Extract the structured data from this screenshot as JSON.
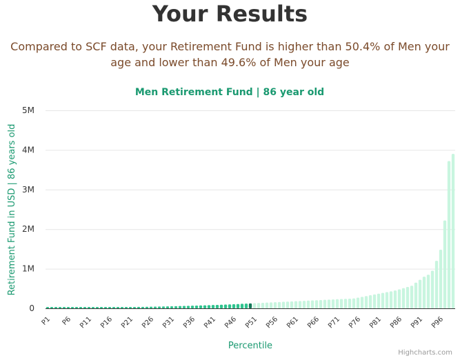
{
  "header": {
    "title": "Your Results",
    "summary": "Compared to SCF data, your Retirement Fund is higher than 50.4% of Men your age and lower than 49.6% of Men your age"
  },
  "credits": "Highcharts.com",
  "colors": {
    "below": "#2fc38e",
    "user": "#157a5a",
    "above": "#c8f5df",
    "accent": "#1a9970"
  },
  "chart_data": {
    "type": "bar",
    "title": "Men Retirement Fund | 86 year old",
    "xlabel": "Percentile",
    "ylabel": "Retirement Fund in USD | 86 years old",
    "ylim": [
      0,
      5000000
    ],
    "yticks": [
      {
        "value": 0,
        "label": "0"
      },
      {
        "value": 1000000,
        "label": "1M"
      },
      {
        "value": 2000000,
        "label": "2M"
      },
      {
        "value": 3000000,
        "label": "3M"
      },
      {
        "value": 4000000,
        "label": "4M"
      },
      {
        "value": 5000000,
        "label": "5M"
      }
    ],
    "xtick_labels": [
      "P1",
      "P6",
      "P11",
      "P16",
      "P21",
      "P26",
      "P31",
      "P36",
      "P41",
      "P46",
      "P51",
      "P56",
      "P61",
      "P66",
      "P71",
      "P76",
      "P81",
      "P86",
      "P91",
      "P96"
    ],
    "user_percentile": 50,
    "grid": true,
    "legend": "none",
    "categories": [
      "P1",
      "P2",
      "P3",
      "P4",
      "P5",
      "P6",
      "P7",
      "P8",
      "P9",
      "P10",
      "P11",
      "P12",
      "P13",
      "P14",
      "P15",
      "P16",
      "P17",
      "P18",
      "P19",
      "P20",
      "P21",
      "P22",
      "P23",
      "P24",
      "P25",
      "P26",
      "P27",
      "P28",
      "P29",
      "P30",
      "P31",
      "P32",
      "P33",
      "P34",
      "P35",
      "P36",
      "P37",
      "P38",
      "P39",
      "P40",
      "P41",
      "P42",
      "P43",
      "P44",
      "P45",
      "P46",
      "P47",
      "P48",
      "P49",
      "P50",
      "P51",
      "P52",
      "P53",
      "P54",
      "P55",
      "P56",
      "P57",
      "P58",
      "P59",
      "P60",
      "P61",
      "P62",
      "P63",
      "P64",
      "P65",
      "P66",
      "P67",
      "P68",
      "P69",
      "P70",
      "P71",
      "P72",
      "P73",
      "P74",
      "P75",
      "P76",
      "P77",
      "P78",
      "P79",
      "P80",
      "P81",
      "P82",
      "P83",
      "P84",
      "P85",
      "P86",
      "P87",
      "P88",
      "P89",
      "P90",
      "P91",
      "P92",
      "P93",
      "P94",
      "P95",
      "P96",
      "P97",
      "P98",
      "P99"
    ],
    "values": [
      0,
      0,
      0,
      0,
      0,
      2000,
      4000,
      6000,
      8000,
      10000,
      12000,
      14000,
      16000,
      18000,
      20000,
      22000,
      24000,
      26000,
      28000,
      30000,
      32000,
      34000,
      36000,
      38000,
      40000,
      42000,
      44000,
      46000,
      48000,
      50000,
      52000,
      55000,
      58000,
      61000,
      64000,
      67000,
      70000,
      73000,
      76000,
      80000,
      84000,
      88000,
      92000,
      96000,
      100000,
      105000,
      110000,
      115000,
      120000,
      125000,
      130000,
      135000,
      140000,
      145000,
      150000,
      155000,
      160000,
      165000,
      170000,
      175000,
      180000,
      185000,
      190000,
      195000,
      200000,
      205000,
      210000,
      215000,
      220000,
      225000,
      230000,
      235000,
      240000,
      245000,
      250000,
      270000,
      290000,
      310000,
      330000,
      350000,
      370000,
      390000,
      410000,
      430000,
      450000,
      480000,
      510000,
      540000,
      570000,
      650000,
      720000,
      800000,
      850000,
      950000,
      1200000,
      1480000,
      2220000,
      3720000,
      3900000
    ]
  }
}
